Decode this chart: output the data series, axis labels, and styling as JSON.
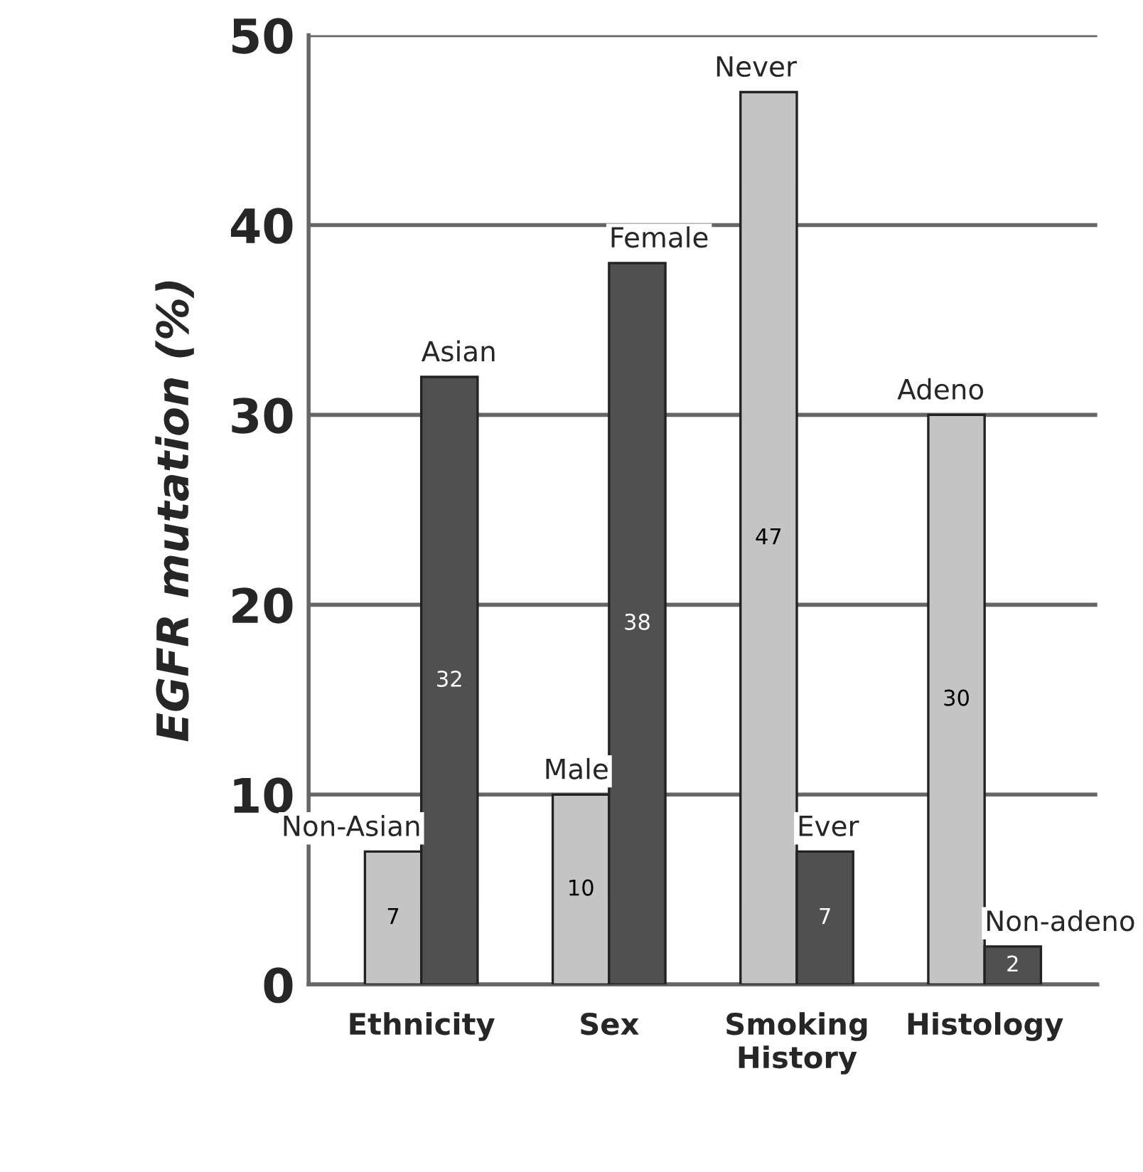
{
  "chart_data": {
    "type": "bar",
    "ylabel": "EGFR mutation (%)",
    "categories": [
      "Ethnicity",
      "Sex",
      "Smoking History",
      "Histology"
    ],
    "series": [
      {
        "color": "#c4c4c4",
        "values": [
          7,
          10,
          47,
          30
        ]
      },
      {
        "color": "#505050",
        "values": [
          32,
          38,
          7,
          2
        ]
      }
    ],
    "data_labels": true,
    "annotations": [
      {
        "text": "Non-Asian",
        "x": "Ethnicity",
        "y": 7
      },
      {
        "text": "Asian",
        "x": "Ethnicity",
        "y": 32
      },
      {
        "text": "Male",
        "x": "Sex",
        "y": 10
      },
      {
        "text": "Female",
        "x": "Sex",
        "y": 38
      },
      {
        "text": "Never",
        "x": "Smoking History",
        "y": 47
      },
      {
        "text": "Ever",
        "x": "Smoking History",
        "y": 7
      },
      {
        "text": "Adeno",
        "x": "Histology",
        "y": 30
      },
      {
        "text": "Non-adeno",
        "x": "Histology",
        "y": 2
      }
    ],
    "ylim": [
      0,
      50
    ],
    "yticks": [
      0,
      10,
      20,
      30,
      40,
      50
    ],
    "grid": "y",
    "legend": false
  }
}
